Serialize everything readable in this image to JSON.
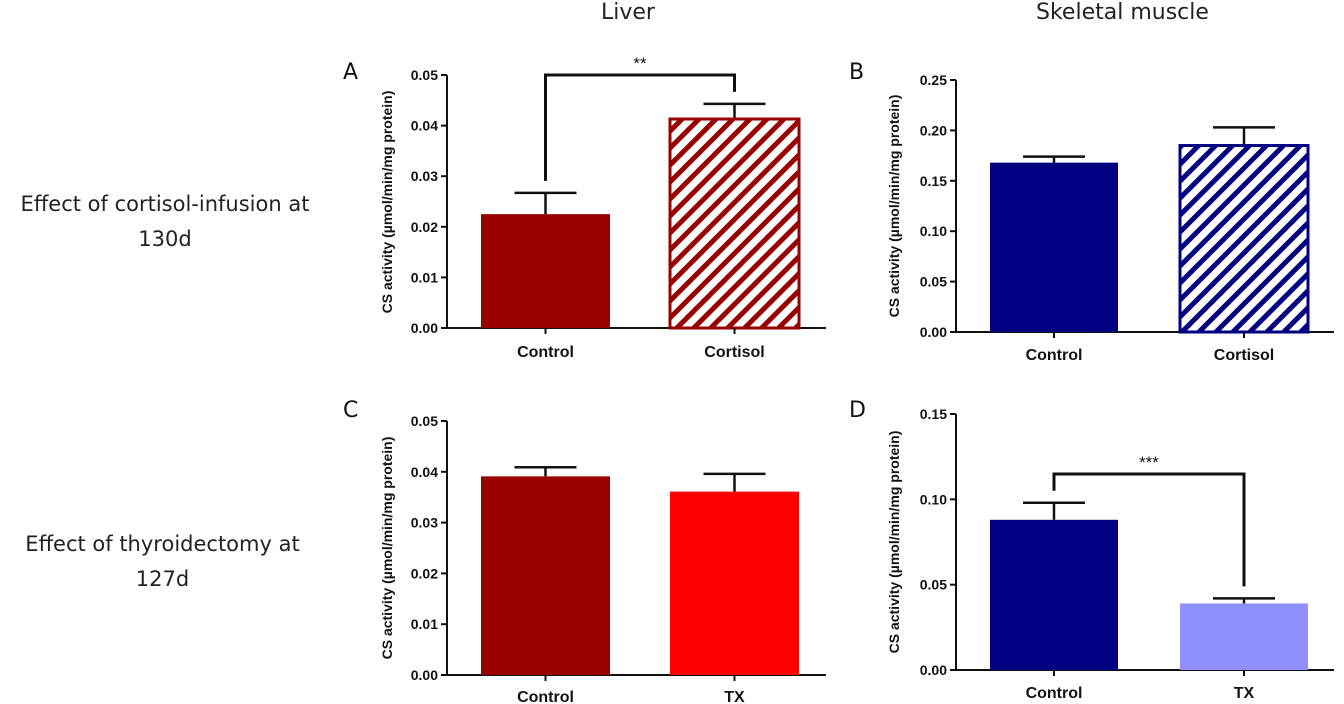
{
  "column_titles": [
    "Liver",
    "Skeletal muscle"
  ],
  "row_labels": [
    {
      "line1": "Effect of cortisol-infusion at",
      "line2": "130d"
    },
    {
      "line1": "Effect of thyroidectomy at",
      "line2": "127d"
    }
  ],
  "chart_data": [
    {
      "panel": "A",
      "type": "bar",
      "ylabel": "CS activity (µmol/min/mg protein)",
      "ylim": [
        0,
        0.05
      ],
      "yticks": [
        "0.00",
        "0.01",
        "0.02",
        "0.03",
        "0.04",
        "0.05"
      ],
      "categories": [
        "Control",
        "Cortisol"
      ],
      "values": [
        0.0225,
        0.0413
      ],
      "errors": [
        0.0042,
        0.003
      ],
      "colors": [
        "#990000",
        "#990000"
      ],
      "patterns": [
        "solid",
        "hatch"
      ],
      "significance": {
        "label": "**",
        "between": [
          0,
          1
        ]
      }
    },
    {
      "panel": "B",
      "type": "bar",
      "ylabel": "CS activity (µmol/min/mg protein)",
      "ylim": [
        0,
        0.25
      ],
      "yticks": [
        "0.00",
        "0.05",
        "0.10",
        "0.15",
        "0.20",
        "0.25"
      ],
      "categories": [
        "Control",
        "Cortisol"
      ],
      "values": [
        0.168,
        0.185
      ],
      "errors": [
        0.006,
        0.018
      ],
      "colors": [
        "#000080",
        "#000080"
      ],
      "patterns": [
        "solid",
        "hatch"
      ],
      "significance": null
    },
    {
      "panel": "C",
      "type": "bar",
      "ylabel": "CS activity (µmol/min/mg protein)",
      "ylim": [
        0,
        0.05
      ],
      "yticks": [
        "0.00",
        "0.01",
        "0.02",
        "0.03",
        "0.04",
        "0.05"
      ],
      "categories": [
        "Control",
        "TX"
      ],
      "values": [
        0.0391,
        0.0361
      ],
      "errors": [
        0.0018,
        0.0035
      ],
      "colors": [
        "#990000",
        "#ff0000"
      ],
      "patterns": [
        "solid",
        "solid"
      ],
      "significance": null
    },
    {
      "panel": "D",
      "type": "bar",
      "ylabel": "CS activity (µmol/min/mg protein)",
      "ylim": [
        0,
        0.15
      ],
      "yticks": [
        "0.00",
        "0.05",
        "0.10",
        "0.15"
      ],
      "categories": [
        "Control",
        "TX"
      ],
      "values": [
        0.088,
        0.039
      ],
      "errors": [
        0.01,
        0.003
      ],
      "colors": [
        "#000080",
        "#8f8fff"
      ],
      "patterns": [
        "solid",
        "solid"
      ],
      "significance": {
        "label": "***",
        "between": [
          0,
          1
        ]
      }
    }
  ]
}
